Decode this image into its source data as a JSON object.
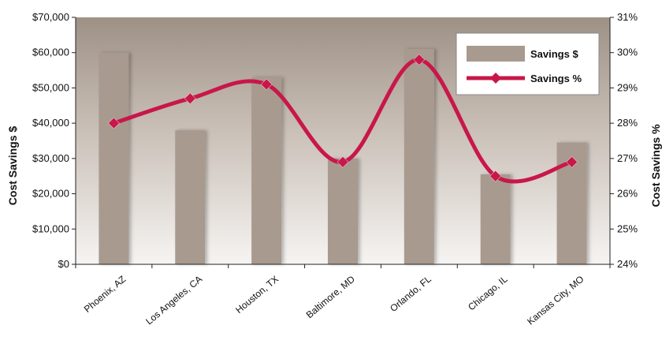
{
  "chart_data": {
    "type": "bar",
    "categories": [
      "Phoenix, AZ",
      "Los Angeles, CA",
      "Houston, TX",
      "Baltimore, MD",
      "Orlando, FL",
      "Chicago, IL",
      "Kansas City, MO"
    ],
    "series": [
      {
        "name": "Savings $",
        "type": "bar",
        "axis": "left",
        "values": [
          60000,
          38000,
          53000,
          30000,
          61000,
          25500,
          34500
        ]
      },
      {
        "name": "Savings %",
        "type": "line",
        "smooth": true,
        "axis": "right",
        "values": [
          28.0,
          28.7,
          29.1,
          26.9,
          29.8,
          26.5,
          26.9
        ]
      }
    ],
    "ylabel": "Cost Savings $",
    "ylabel_right": "Cost Savings %",
    "ylim": [
      0,
      70000
    ],
    "ylim_right": [
      24,
      31
    ],
    "yticks": [
      "$0",
      "$10,000",
      "$20,000",
      "$30,000",
      "$40,000",
      "$50,000",
      "$60,000",
      "$70,000"
    ],
    "yticks_right": [
      "24%",
      "25%",
      "26%",
      "27%",
      "28%",
      "29%",
      "30%",
      "31%"
    ],
    "legend_position": "top-right",
    "grid": false,
    "colors": {
      "bar": "#a89a8e",
      "line": "#c8174a",
      "plot_bg_top": "#9e9186",
      "plot_bg_bottom": "#f6f4f2"
    }
  }
}
